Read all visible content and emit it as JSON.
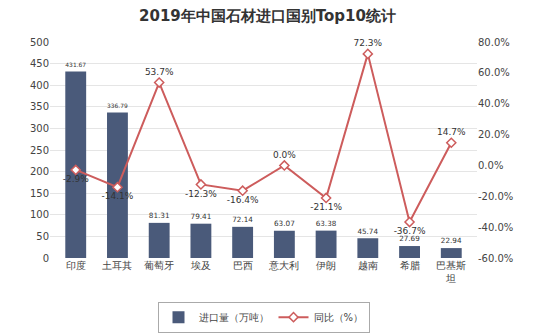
{
  "chart_data": {
    "type": "bar",
    "title": "2019年中国石材进口国别Top10统计",
    "categories": [
      "印度",
      "土耳其",
      "葡萄牙",
      "埃及",
      "巴西",
      "意大利",
      "伊朗",
      "越南",
      "希腊",
      "巴基斯\n坦"
    ],
    "series": [
      {
        "name": "进口量（万吨）",
        "type": "bar",
        "color": "#4a5a7a",
        "values": [
          431.67,
          336.79,
          81.31,
          79.41,
          72.14,
          63.07,
          63.38,
          45.74,
          27.69,
          22.94
        ],
        "data_labels": true
      },
      {
        "name": "同比（%）",
        "type": "line",
        "axis": "y2",
        "color": "#cd5c5c",
        "marker": "diamond",
        "values": [
          -2.9,
          -14.1,
          53.7,
          -12.3,
          -16.4,
          0.0,
          -21.1,
          72.3,
          -36.7,
          14.7
        ],
        "value_labels": [
          "-2.9%",
          "-14.1%",
          "53.7%",
          "-12.3%",
          "-16.4%",
          "0.0%",
          "-21.1%",
          "72.3%",
          "-36.7%",
          "14.7%"
        ],
        "data_labels": true
      }
    ],
    "ylim": [
      0,
      500
    ],
    "yticks": [
      0,
      50,
      100,
      150,
      200,
      250,
      300,
      350,
      400,
      450,
      500
    ],
    "y2lim": [
      -60,
      80
    ],
    "y2ticks": [
      {
        "value": -60,
        "label": "-60.0%"
      },
      {
        "value": -40,
        "label": "-40.0%"
      },
      {
        "value": -20,
        "label": "-20.0%"
      },
      {
        "value": 0,
        "label": "0.0%"
      },
      {
        "value": 20,
        "label": "20.0%"
      },
      {
        "value": 40,
        "label": "40.0%"
      },
      {
        "value": 60,
        "label": "60.0%"
      },
      {
        "value": 80,
        "label": "80.0%"
      }
    ],
    "grid": true,
    "legend": "bottom"
  }
}
